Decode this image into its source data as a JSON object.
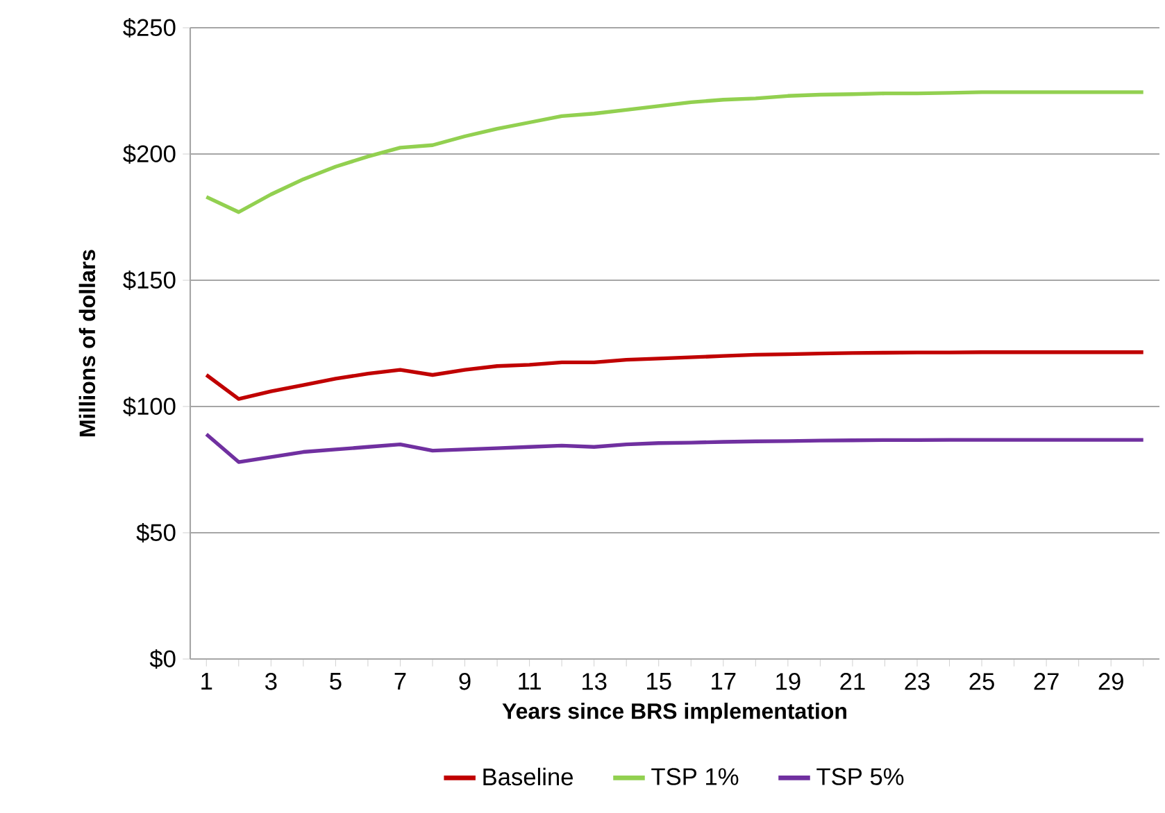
{
  "chart_data": {
    "type": "line",
    "xlabel": "Years since BRS implementation",
    "ylabel": "Millions of dollars",
    "categories": [
      "1",
      null,
      "3",
      null,
      "5",
      null,
      "7",
      null,
      "9",
      null,
      "11",
      null,
      "13",
      null,
      "15",
      null,
      "17",
      null,
      "19",
      null,
      "21",
      null,
      "23",
      null,
      "25",
      null,
      "27",
      null,
      "29",
      null
    ],
    "ylim": [
      0,
      250
    ],
    "yticks": [
      {
        "value": 0,
        "label": "$0"
      },
      {
        "value": 50,
        "label": "$50"
      },
      {
        "value": 100,
        "label": "$100"
      },
      {
        "value": 150,
        "label": "$150"
      },
      {
        "value": 200,
        "label": "$200"
      },
      {
        "value": 250,
        "label": "$250"
      }
    ],
    "grid": "y",
    "legend": "bottom",
    "series": [
      {
        "name": "Baseline",
        "color": "#c00000",
        "values": [
          112.5,
          103,
          106,
          108.5,
          111,
          113,
          114.5,
          112.5,
          114.5,
          116,
          116.5,
          117.5,
          117.5,
          118.5,
          119,
          119.5,
          120,
          120.5,
          120.7,
          121,
          121.2,
          121.3,
          121.4,
          121.4,
          121.5,
          121.5,
          121.5,
          121.5,
          121.5,
          121.5
        ]
      },
      {
        "name": "TSP 1%",
        "color": "#92d050",
        "values": [
          183,
          177,
          184,
          190,
          195,
          199,
          202.5,
          203.5,
          207,
          210,
          212.5,
          215,
          216,
          217.5,
          219,
          220.5,
          221.5,
          222,
          223,
          223.5,
          223.7,
          224,
          224,
          224.2,
          224.5,
          224.5,
          224.5,
          224.5,
          224.5,
          224.5
        ]
      },
      {
        "name": "TSP 5%",
        "color": "#7030a0",
        "values": [
          89,
          78,
          80,
          82,
          83,
          84,
          85,
          82.5,
          83,
          83.5,
          84,
          84.5,
          84,
          85,
          85.5,
          85.7,
          86,
          86.2,
          86.3,
          86.5,
          86.6,
          86.7,
          86.7,
          86.8,
          86.8,
          86.8,
          86.8,
          86.8,
          86.8,
          86.8
        ]
      }
    ]
  }
}
